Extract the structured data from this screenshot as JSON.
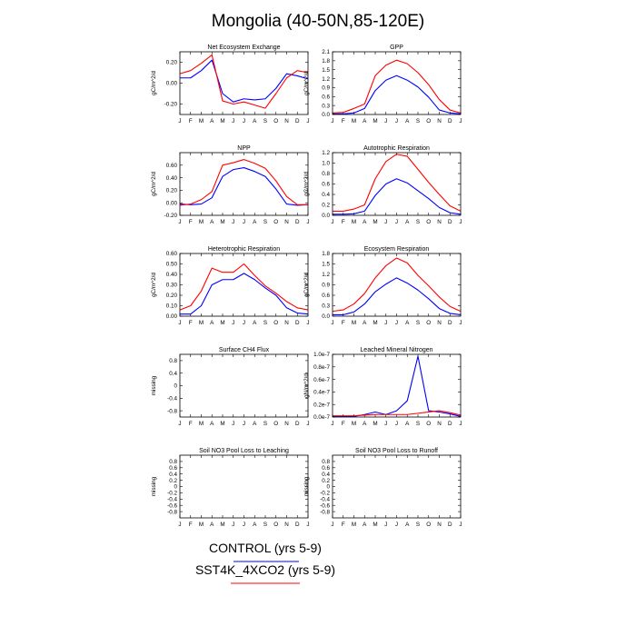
{
  "title": "Mongolia (40-50N,85-120E)",
  "months": [
    "J",
    "F",
    "M",
    "A",
    "M",
    "J",
    "J",
    "A",
    "S",
    "O",
    "N",
    "D",
    "J"
  ],
  "series_colors": {
    "control": "#0000ff",
    "sst4k": "#ff0000"
  },
  "legend": {
    "control_label": "CONTROL (yrs 5-9)",
    "sst4k_label": "SST4K_4XCO2 (yrs 5-9)"
  },
  "chart_data": [
    {
      "type": "line",
      "title": "Net Ecosystem Exchange",
      "ylabel": "gC/m^2/d",
      "ylim": [
        -0.3,
        0.3
      ],
      "yticks": [
        -0.2,
        0.0,
        0.2
      ],
      "yticklabels": [
        "-0.20",
        "0.00",
        "0.20"
      ],
      "series": [
        {
          "values": [
            0.05,
            0.05,
            0.12,
            0.22,
            -0.1,
            -0.18,
            -0.15,
            -0.16,
            -0.15,
            -0.05,
            0.09,
            0.07,
            0.04
          ]
        },
        {
          "values": [
            0.09,
            0.12,
            0.19,
            0.27,
            -0.17,
            -0.2,
            -0.18,
            -0.21,
            -0.24,
            -0.1,
            0.05,
            0.12,
            0.1
          ]
        }
      ]
    },
    {
      "type": "line",
      "title": "GPP",
      "ylabel": "gC/m^2/d",
      "ylim": [
        0,
        2.1
      ],
      "yticks": [
        0,
        0.3,
        0.6,
        0.9,
        1.2,
        1.5,
        1.8,
        2.1
      ],
      "yticklabels": [
        "0.0",
        "0.3",
        "0.6",
        "0.9",
        "1.2",
        "1.5",
        "1.8",
        "2.1"
      ],
      "series": [
        {
          "values": [
            0.02,
            0.02,
            0.05,
            0.2,
            0.8,
            1.15,
            1.3,
            1.15,
            0.92,
            0.58,
            0.15,
            0.05,
            0.02
          ]
        },
        {
          "values": [
            0.05,
            0.07,
            0.2,
            0.35,
            1.3,
            1.65,
            1.82,
            1.7,
            1.4,
            1.0,
            0.5,
            0.15,
            0.05
          ]
        }
      ]
    },
    {
      "type": "line",
      "title": "NPP",
      "ylabel": "gC/m^2/d",
      "ylim": [
        -0.2,
        0.8
      ],
      "yticks": [
        -0.2,
        0,
        0.2,
        0.4,
        0.6
      ],
      "yticklabels": [
        "-0.20",
        "0.00",
        "0.20",
        "0.40",
        "0.60"
      ],
      "series": [
        {
          "values": [
            -0.02,
            -0.03,
            -0.02,
            0.08,
            0.42,
            0.53,
            0.56,
            0.5,
            0.42,
            0.22,
            -0.02,
            -0.04,
            -0.03
          ]
        },
        {
          "values": [
            -0.04,
            -0.02,
            0.05,
            0.18,
            0.6,
            0.64,
            0.69,
            0.63,
            0.55,
            0.35,
            0.1,
            -0.03,
            -0.03
          ]
        }
      ]
    },
    {
      "type": "line",
      "title": "Autotrophic Respiration",
      "ylabel": "gC/m^2/d",
      "ylim": [
        0,
        1.2
      ],
      "yticks": [
        0,
        0.2,
        0.4,
        0.6,
        0.8,
        1.0,
        1.2
      ],
      "yticklabels": [
        "0.0",
        "0.2",
        "0.4",
        "0.6",
        "0.8",
        "1.0",
        "1.2"
      ],
      "series": [
        {
          "values": [
            0.02,
            0.02,
            0.03,
            0.08,
            0.38,
            0.6,
            0.7,
            0.62,
            0.47,
            0.32,
            0.15,
            0.05,
            0.02
          ]
        },
        {
          "values": [
            0.08,
            0.08,
            0.12,
            0.2,
            0.7,
            1.03,
            1.17,
            1.13,
            0.88,
            0.63,
            0.4,
            0.18,
            0.08
          ]
        }
      ]
    },
    {
      "type": "line",
      "title": "Heterotrophic Respiration",
      "ylabel": "gC/m^2/d",
      "ylim": [
        0,
        0.6
      ],
      "yticks": [
        0,
        0.1,
        0.2,
        0.3,
        0.4,
        0.5,
        0.6
      ],
      "yticklabels": [
        "0.00",
        "0.10",
        "0.20",
        "0.30",
        "0.40",
        "0.50",
        "0.60"
      ],
      "series": [
        {
          "values": [
            0.02,
            0.02,
            0.1,
            0.3,
            0.35,
            0.35,
            0.41,
            0.35,
            0.27,
            0.2,
            0.08,
            0.03,
            0.02
          ]
        },
        {
          "values": [
            0.06,
            0.1,
            0.24,
            0.46,
            0.42,
            0.42,
            0.5,
            0.39,
            0.29,
            0.22,
            0.14,
            0.08,
            0.06
          ]
        }
      ]
    },
    {
      "type": "line",
      "title": "Ecosystem Respiration",
      "ylabel": "gC/m^2/d",
      "ylim": [
        0,
        1.8
      ],
      "yticks": [
        0,
        0.3,
        0.6,
        0.9,
        1.2,
        1.5,
        1.8
      ],
      "yticklabels": [
        "0.0",
        "0.3",
        "0.6",
        "0.9",
        "1.2",
        "1.5",
        "1.8"
      ],
      "series": [
        {
          "values": [
            0.04,
            0.04,
            0.12,
            0.35,
            0.7,
            0.92,
            1.1,
            0.95,
            0.75,
            0.5,
            0.22,
            0.08,
            0.04
          ]
        },
        {
          "values": [
            0.14,
            0.18,
            0.35,
            0.65,
            1.1,
            1.45,
            1.67,
            1.53,
            1.17,
            0.87,
            0.55,
            0.28,
            0.14
          ]
        }
      ]
    },
    {
      "type": "line",
      "title": "Surface CH4 Flux",
      "ylabel": "missing",
      "ylim": [
        -1,
        1
      ],
      "yticks": [
        -0.8,
        -0.4,
        0,
        0.4,
        0.8
      ],
      "yticklabels": [
        "-0.8",
        "-0.4",
        "0",
        "0.4",
        "0.8"
      ],
      "series": []
    },
    {
      "type": "line",
      "title": "Leached Mineral Nitrogen",
      "ylabel": "gN/m^2/d",
      "ylim": [
        0,
        1.0
      ],
      "yticks": [
        0,
        0.2,
        0.4,
        0.6,
        0.8,
        1.0
      ],
      "yticklabels": [
        "0.0e-7",
        "0.2e-7",
        "0.4e-7",
        "0.6e-7",
        "0.8e-7",
        "1.0e-7"
      ],
      "series": [
        {
          "values": [
            0.01,
            0.01,
            0.01,
            0.04,
            0.08,
            0.04,
            0.1,
            0.26,
            0.97,
            0.1,
            0.08,
            0.05,
            0.01
          ]
        },
        {
          "values": [
            0.02,
            0.02,
            0.02,
            0.03,
            0.04,
            0.04,
            0.04,
            0.04,
            0.06,
            0.08,
            0.1,
            0.07,
            0.03
          ]
        }
      ]
    },
    {
      "type": "line",
      "title": "Soil NO3 Pool Loss to Leaching",
      "ylabel": "missing",
      "ylim": [
        -1,
        1
      ],
      "yticks": [
        -0.8,
        -0.6,
        -0.4,
        -0.2,
        0,
        0.2,
        0.4,
        0.6,
        0.8
      ],
      "yticklabels": [
        "-0.8",
        "-0.6",
        "-0.4",
        "-0.2",
        "0",
        "0.2",
        "0.4",
        "0.6",
        "0.8"
      ],
      "series": []
    },
    {
      "type": "line",
      "title": "Soil NO3 Pool Loss to Runoff",
      "ylabel": "missing",
      "ylim": [
        -1,
        1
      ],
      "yticks": [
        -0.8,
        -0.6,
        -0.4,
        -0.2,
        0,
        0.2,
        0.4,
        0.6,
        0.8
      ],
      "yticklabels": [
        "-0.8",
        "-0.6",
        "-0.4",
        "-0.2",
        "0",
        "0.2",
        "0.4",
        "0.6",
        "0.8"
      ],
      "series": []
    }
  ]
}
